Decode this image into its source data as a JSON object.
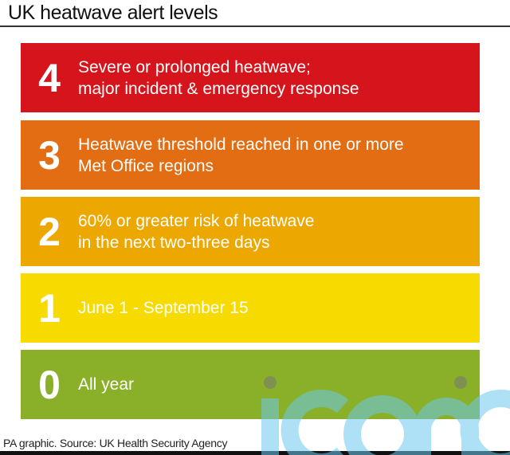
{
  "title": "UK heatwave alert levels",
  "levels": [
    {
      "level": "4",
      "text": "Severe or prolonged heatwave;\nmajor incident & emergency response",
      "color": "#d5141b"
    },
    {
      "level": "3",
      "text": "Heatwave threshold reached in one or more\nMet Office regions",
      "color": "#e26d12"
    },
    {
      "level": "2",
      "text": "60% or greater risk of heatwave\nin the next two-three days",
      "color": "#eca800"
    },
    {
      "level": "1",
      "text": "June 1 - September 15",
      "color": "#f7db00"
    },
    {
      "level": "0",
      "text": "All year",
      "color": "#8aaf28"
    }
  ],
  "source": "PA graphic. Source: UK Health Security Agency",
  "watermark": "iconic"
}
